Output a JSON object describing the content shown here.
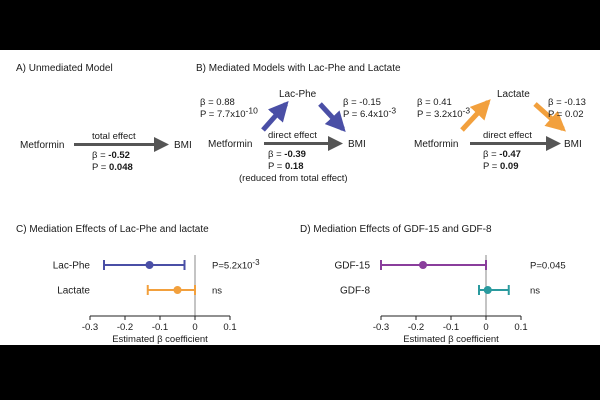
{
  "panel_a": {
    "title": "A) Unmediated Model",
    "exposure": "Metformin",
    "outcome": "BMI",
    "edge_label": "total effect",
    "beta_prefix": "β = ",
    "beta": "-0.52",
    "p_prefix": "P = ",
    "p": "0.048"
  },
  "panel_b": {
    "title": "B) Mediated Models with Lac-Phe and Lactate",
    "models": [
      {
        "exposure": "Metformin",
        "mediator": "Lac-Phe",
        "outcome": "BMI",
        "color": "#4a4fa6",
        "a_beta": "β = 0.88",
        "a_p_text": "P = 7.7x10",
        "a_p_exp": "-10",
        "b_beta": "β = -0.15",
        "b_p_text": "P = 6.4x10",
        "b_p_exp": "-3",
        "direct_label": "direct effect",
        "beta_prefix": "β = ",
        "direct_beta": "-0.39",
        "p_prefix": "P = ",
        "direct_p": "0.18",
        "note": "(reduced from total effect)"
      },
      {
        "exposure": "Metformin",
        "mediator": "Lactate",
        "outcome": "BMI",
        "color": "#f2a03d",
        "a_beta": "β = 0.41",
        "a_p_text": "P = 3.2x10",
        "a_p_exp": "-3",
        "b_beta": "β = -0.13",
        "b_p_text": "P = 0.02",
        "b_p_exp": "",
        "direct_label": "direct effect",
        "beta_prefix": "β = ",
        "direct_beta": "-0.47",
        "p_prefix": "P = ",
        "direct_p": "0.09",
        "note": ""
      }
    ]
  },
  "panel_c": {
    "title": "C) Mediation Effects of Lac-Phe and lactate",
    "xlabel": "Estimated β coefficient",
    "ticks": [
      "-0.3",
      "-0.2",
      "-0.1",
      "0",
      "0.1"
    ],
    "xlim": [
      -0.3,
      0.1
    ],
    "rows": [
      {
        "label": "Lac-Phe",
        "estimate": -0.13,
        "lo": -0.26,
        "hi": -0.03,
        "color": "#4a4fa6",
        "p_text": "P=5.2x10",
        "p_exp": "-3"
      },
      {
        "label": "Lactate",
        "estimate": -0.05,
        "lo": -0.135,
        "hi": 0.0,
        "color": "#f2a03d",
        "p_text": "ns",
        "p_exp": ""
      }
    ]
  },
  "panel_d": {
    "title": "D) Mediation Effects of GDF-15 and GDF-8",
    "xlabel": "Estimated β coefficient",
    "ticks": [
      "-0.3",
      "-0.2",
      "-0.1",
      "0",
      "0.1"
    ],
    "xlim": [
      -0.3,
      0.1
    ],
    "rows": [
      {
        "label": "GDF-15",
        "estimate": -0.18,
        "lo": -0.3,
        "hi": 0.0,
        "color": "#8a3e9c",
        "p_text": "P=0.045",
        "p_exp": ""
      },
      {
        "label": "GDF-8",
        "estimate": 0.005,
        "lo": -0.02,
        "hi": 0.065,
        "color": "#2a9a9e",
        "p_text": "ns",
        "p_exp": ""
      }
    ]
  }
}
